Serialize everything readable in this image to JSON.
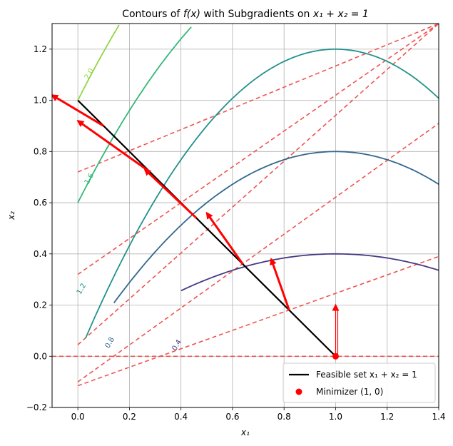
{
  "chart_data": {
    "type": "line",
    "title": "Contours of f(x) with Subgradients on x₁ + x₂ = 1",
    "title_parts": {
      "prefix": "Contours of ",
      "func": "f(x)",
      "mid": " with Subgradients on ",
      "constraint": "x₁ + x₂ = 1"
    },
    "xlabel": "x₁",
    "ylabel": "x₂",
    "xlim": [
      -0.1,
      1.4
    ],
    "ylim": [
      -0.2,
      1.3
    ],
    "xticks": [
      "0.0",
      "0.2",
      "0.4",
      "0.6",
      "0.8",
      "1.0",
      "1.2",
      "1.4"
    ],
    "yticks": [
      "−0.2",
      "0.0",
      "0.2",
      "0.4",
      "0.6",
      "0.8",
      "1.0",
      "1.2"
    ],
    "grid": true,
    "contours": [
      {
        "level": "0.4",
        "color": "#443983",
        "peak_x": 1.0,
        "peak_y": 0.4,
        "points": [
          [
            0.4,
            0.04
          ],
          [
            0.6,
            0.24
          ],
          [
            0.8,
            0.36
          ],
          [
            1.0,
            0.4
          ],
          [
            1.2,
            0.36
          ],
          [
            1.4,
            0.24
          ]
        ],
        "label_at": [
          0.38,
          0.02
        ]
      },
      {
        "level": "0.8",
        "color": "#31688e",
        "peak_x": 1.0,
        "peak_y": 0.8,
        "points": [
          [
            0.14,
            0.06
          ],
          [
            0.3,
            0.31
          ],
          [
            0.5,
            0.55
          ],
          [
            0.7,
            0.71
          ],
          [
            1.0,
            0.8
          ],
          [
            1.2,
            0.76
          ],
          [
            1.4,
            0.64
          ]
        ],
        "label_at": [
          0.12,
          0.03
        ]
      },
      {
        "level": "1.2",
        "color": "#21918c",
        "peak_x": 1.0,
        "peak_y": 1.2,
        "points": [
          [
            0.03,
            0.26
          ],
          [
            0.2,
            0.56
          ],
          [
            0.4,
            0.84
          ],
          [
            0.6,
            1.04
          ],
          [
            0.8,
            1.16
          ],
          [
            1.0,
            1.2
          ],
          [
            1.2,
            1.16
          ],
          [
            1.4,
            1.04
          ]
        ],
        "label_at": [
          0.01,
          0.24
        ]
      },
      {
        "level": "1.6",
        "color": "#35b779",
        "peak_x": 1.0,
        "peak_y": 1.6,
        "points": [
          [
            0.0,
            0.6
          ],
          [
            0.1,
            0.79
          ],
          [
            0.2,
            0.96
          ],
          [
            0.3,
            1.11
          ],
          [
            0.4,
            1.24
          ],
          [
            0.44,
            1.3
          ]
        ],
        "label_at": [
          0.04,
          0.67
        ]
      },
      {
        "level": "2.0",
        "color": "#90d743",
        "peak_x": 1.0,
        "peak_y": 2.0,
        "points": [
          [
            0.0,
            1.0
          ],
          [
            0.05,
            1.1
          ],
          [
            0.1,
            1.19
          ],
          [
            0.16,
            1.3
          ]
        ],
        "label_at": [
          0.04,
          1.08
        ]
      }
    ],
    "feasible_set": {
      "name": "Feasible set x₁ + x₂ = 1",
      "color": "#000000",
      "points": [
        [
          0.0,
          1.0
        ],
        [
          1.0,
          0.0
        ]
      ]
    },
    "tangent_lines": {
      "color": "#ef5350",
      "style": "dashed",
      "lines": [
        [
          [
            -0.1,
            0.0
          ],
          [
            1.4,
            0.0
          ]
        ],
        [
          [
            0.0,
            -0.115
          ],
          [
            1.4,
            0.39
          ]
        ],
        [
          [
            0.0,
            -0.1
          ],
          [
            1.4,
            0.91
          ]
        ],
        [
          [
            0.0,
            0.045
          ],
          [
            1.4,
            1.3
          ]
        ],
        [
          [
            0.0,
            0.32
          ],
          [
            1.4,
            1.3
          ]
        ],
        [
          [
            0.0,
            0.72
          ],
          [
            1.4,
            1.3
          ]
        ]
      ]
    },
    "subgradients": {
      "color": "#ff0000",
      "arrows": [
        {
          "from": [
            1.0,
            0.0
          ],
          "to": [
            1.0,
            0.2
          ]
        },
        {
          "from": [
            0.82,
            0.18
          ],
          "to": [
            0.75,
            0.38
          ]
        },
        {
          "from": [
            0.64,
            0.36
          ],
          "to": [
            0.5,
            0.56
          ]
        },
        {
          "from": [
            0.46,
            0.54
          ],
          "to": [
            0.26,
            0.73
          ]
        },
        {
          "from": [
            0.28,
            0.72
          ],
          "to": [
            0.0,
            0.92
          ]
        },
        {
          "from": [
            0.1,
            0.9
          ],
          "to": [
            -0.1,
            1.02
          ]
        }
      ]
    },
    "minimizer": {
      "name": "Minimizer (1, 0)",
      "x": 1.0,
      "y": 0.0,
      "color": "#ff0000"
    },
    "legend": {
      "placement": "lower-right",
      "entries": [
        "Feasible set x₁ + x₂ = 1",
        "Minimizer (1, 0)"
      ]
    }
  }
}
